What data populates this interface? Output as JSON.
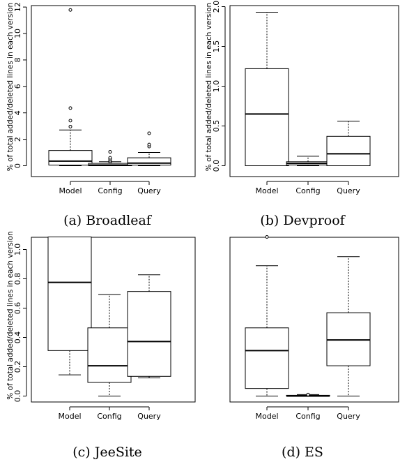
{
  "figure": {
    "ylabel": "% of total added/deleted lines in each version"
  },
  "chart_data": [
    {
      "type": "boxplot",
      "caption": "(a) Broadleaf",
      "categories": [
        "Model",
        "Config",
        "Query"
      ],
      "ylabel": "% of total added/deleted lines in each version",
      "ylim": [
        0,
        12
      ],
      "yticks": [
        "0",
        "2",
        "4",
        "6",
        "8",
        "10",
        "12"
      ],
      "boxes": [
        {
          "min": 0.0,
          "q1": 0.05,
          "median": 0.35,
          "q3": 1.15,
          "max": 2.7,
          "outliers": [
            2.95,
            3.4,
            4.35,
            11.75
          ]
        },
        {
          "min": 0.0,
          "q1": 0.0,
          "median": 0.05,
          "q3": 0.18,
          "max": 0.3,
          "outliers": [
            0.28,
            0.38,
            0.5,
            0.6,
            1.05
          ]
        },
        {
          "min": 0.0,
          "q1": 0.05,
          "median": 0.2,
          "q3": 0.6,
          "max": 1.0,
          "outliers": [
            1.45,
            1.6,
            2.45
          ]
        }
      ]
    },
    {
      "type": "boxplot",
      "caption": "(b) Devproof",
      "categories": [
        "Model",
        "Config",
        "Query"
      ],
      "ylabel": "% of total added/deleted lines in each version",
      "ylim": [
        0,
        2.0
      ],
      "yticks": [
        "0.0",
        "0.5",
        "1.0",
        "1.5",
        "2.0"
      ],
      "boxes": [
        {
          "min": 0.0,
          "q1": 0.0,
          "median": 0.65,
          "q3": 1.22,
          "max": 1.93,
          "outliers": []
        },
        {
          "min": 0.0,
          "q1": 0.01,
          "median": 0.03,
          "q3": 0.05,
          "max": 0.12,
          "outliers": []
        },
        {
          "min": 0.0,
          "q1": 0.0,
          "median": 0.15,
          "q3": 0.37,
          "max": 0.56,
          "outliers": []
        }
      ]
    },
    {
      "type": "boxplot",
      "caption": "(c) JeeSite",
      "categories": [
        "Model",
        "Config",
        "Query"
      ],
      "ylabel": "% of total added/deleted lines in each version",
      "ylim": [
        0,
        1.05
      ],
      "yticks": [
        "0.0",
        "0.2",
        "0.4",
        "0.6",
        "0.8",
        "1.0"
      ],
      "boxes": [
        {
          "min": 0.14,
          "q1": 0.3,
          "median": 0.75,
          "q3": 1.05,
          "max": 1.05,
          "outliers": []
        },
        {
          "min": 0.0,
          "q1": 0.09,
          "median": 0.2,
          "q3": 0.45,
          "max": 0.67,
          "outliers": []
        },
        {
          "min": 0.12,
          "q1": 0.13,
          "median": 0.36,
          "q3": 0.69,
          "max": 0.8,
          "outliers": []
        }
      ]
    },
    {
      "type": "boxplot",
      "caption": "(d) ES",
      "categories": [
        "Model",
        "Config",
        "Query"
      ],
      "ylim": [
        0,
        1.05
      ],
      "yticks": [],
      "boxes": [
        {
          "min": 0.0,
          "q1": 0.05,
          "median": 0.3,
          "q3": 0.45,
          "max": 0.86,
          "outliers": [
            1.05
          ]
        },
        {
          "min": 0.0,
          "q1": 0.0,
          "median": 0.0,
          "q3": 0.005,
          "max": 0.01,
          "outliers": [
            0.01
          ]
        },
        {
          "min": 0.0,
          "q1": 0.2,
          "median": 0.37,
          "q3": 0.55,
          "max": 0.92,
          "outliers": []
        }
      ]
    }
  ]
}
